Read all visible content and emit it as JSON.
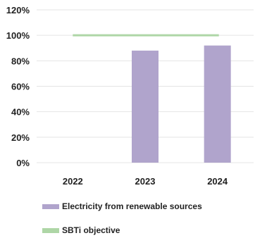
{
  "chart_data": {
    "type": "bar",
    "categories": [
      "2022",
      "2023",
      "2024"
    ],
    "series": [
      {
        "name": "Electricity from renewable sources",
        "type": "bar",
        "color": "#b0a4cc",
        "values": [
          null,
          88,
          92
        ]
      },
      {
        "name": "SBTi objective",
        "type": "line",
        "color": "#aed6a6",
        "values": [
          100,
          100,
          100
        ]
      }
    ],
    "yticks": [
      "0%",
      "20%",
      "40%",
      "60%",
      "80%",
      "100%",
      "120%"
    ],
    "ylim": [
      0,
      120
    ],
    "grid": true,
    "legend_position": "bottom"
  }
}
